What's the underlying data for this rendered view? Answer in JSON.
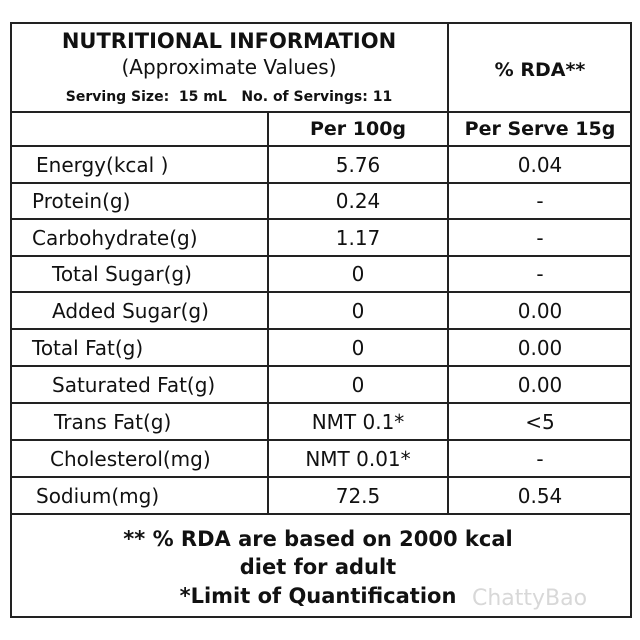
{
  "header": {
    "title": "NUTRITIONAL INFORMATION",
    "subtitle": "(Approximate Values)",
    "serving": "Serving Size:  15 mL   No. of Servings: 11",
    "rda_header": "% RDA**"
  },
  "table": {
    "columns": [
      "Per 100g",
      "Per Serve 15g"
    ],
    "rows": [
      [
        "Energy(kcal )",
        "5.76",
        "0.04"
      ],
      [
        "Protein(g)",
        "0.24",
        "-"
      ],
      [
        "Carbohydrate(g)",
        "1.17",
        "-"
      ],
      [
        "Total Sugar(g)",
        "0",
        "-"
      ],
      [
        "Added Sugar(g)",
        "0",
        "0.00"
      ],
      [
        "Total Fat(g)",
        "0",
        "0.00"
      ],
      [
        "Saturated Fat(g)",
        "0",
        "0.00"
      ],
      [
        "Trans Fat(g)",
        "NMT 0.1*",
        "<5"
      ],
      [
        "Cholesterol(mg)",
        "NMT 0.01*",
        "-"
      ],
      [
        "Sodium(mg)",
        "72.5",
        "0.54"
      ]
    ]
  },
  "footer": {
    "lines": [
      "** % RDA are based on 2000 kcal",
      "diet for adult",
      "*Limit of Quantification"
    ]
  },
  "watermark": "ChattyBao"
}
